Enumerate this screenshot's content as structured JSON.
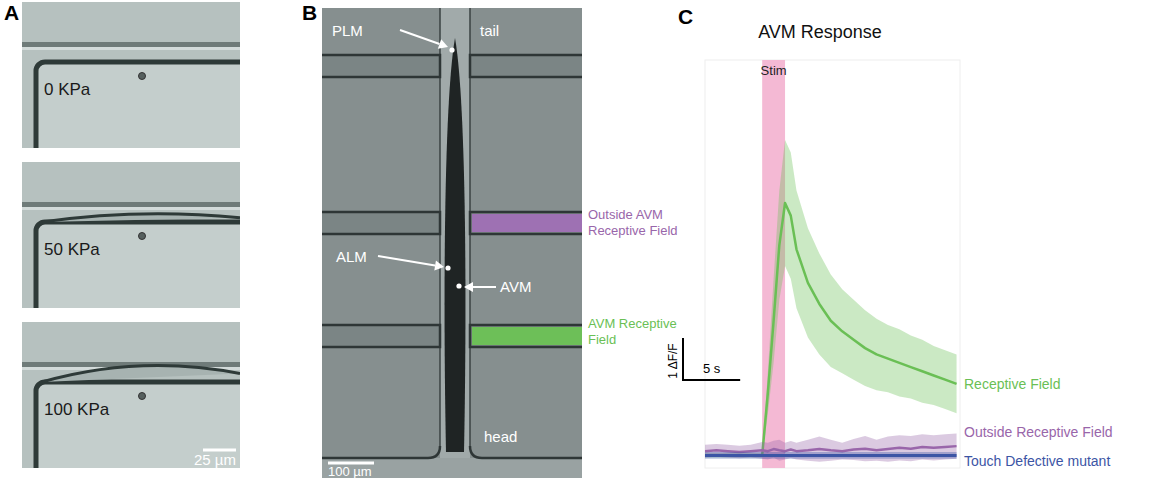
{
  "panel_letters": [
    "A",
    "B",
    "C"
  ],
  "panel_a": {
    "images": [
      {
        "label": "0 KPa"
      },
      {
        "label": "50 KPa"
      },
      {
        "label": "100 KPa"
      }
    ],
    "scale_bar": "25 µm"
  },
  "panel_b": {
    "labels": {
      "plm": "PLM",
      "tail": "tail",
      "alm": "ALM",
      "avm": "AVM",
      "head": "head"
    },
    "outside_field": "Outside AVM Receptive Field",
    "field": "AVM Receptive Field",
    "scale_bar": "100 µm"
  },
  "chart_data": {
    "type": "line",
    "title": "AVM Response",
    "x": [
      0,
      1,
      2,
      3,
      4,
      5,
      5.5,
      6,
      6.5,
      7,
      7.5,
      8,
      9,
      10,
      11,
      12,
      13,
      14,
      15,
      16,
      17,
      18,
      19,
      20,
      21,
      22
    ],
    "xlim": [
      0,
      22.3
    ],
    "ylim": [
      -0.3,
      9.4
    ],
    "tick_labels": false,
    "grid": false,
    "annotations": [
      {
        "label": "Stim",
        "x": [
          5,
          7
        ]
      }
    ],
    "scale_bars": {
      "x": {
        "value": 5,
        "label": "5 s"
      },
      "y": {
        "value": 1,
        "label": "1 ΔF/F"
      }
    },
    "series": [
      {
        "name": "Receptive Field",
        "color": "#6abf55",
        "values": [
          0,
          0,
          0,
          0,
          0,
          0,
          1.5,
          3.2,
          5.0,
          6.0,
          5.7,
          4.9,
          4.1,
          3.6,
          3.2,
          2.95,
          2.75,
          2.55,
          2.4,
          2.3,
          2.2,
          2.1,
          2.0,
          1.9,
          1.8,
          1.7
        ],
        "error": [
          0.05,
          0.05,
          0.05,
          0.05,
          0.05,
          0.05,
          0.5,
          1.0,
          1.3,
          1.5,
          1.5,
          1.4,
          1.3,
          1.2,
          1.1,
          1.0,
          0.95,
          0.9,
          0.85,
          0.8,
          0.8,
          0.75,
          0.75,
          0.7,
          0.7,
          0.7
        ]
      },
      {
        "name": "Outside Receptive Field",
        "color": "#9966aa",
        "values": [
          0.1,
          0.12,
          0.1,
          0.08,
          0.1,
          0.12,
          0.1,
          0.15,
          0.12,
          0.1,
          0.14,
          0.1,
          0.12,
          0.15,
          0.12,
          0.1,
          0.14,
          0.16,
          0.12,
          0.15,
          0.18,
          0.16,
          0.2,
          0.18,
          0.2,
          0.22
        ],
        "error": [
          0.15,
          0.15,
          0.15,
          0.15,
          0.15,
          0.2,
          0.2,
          0.2,
          0.25,
          0.2,
          0.2,
          0.2,
          0.25,
          0.3,
          0.25,
          0.2,
          0.25,
          0.3,
          0.25,
          0.3,
          0.3,
          0.3,
          0.3,
          0.3,
          0.3,
          0.3
        ]
      },
      {
        "name": "Touch Defective mutant",
        "color": "#3c55a5",
        "values": [
          0,
          0,
          0,
          0,
          0,
          0,
          0,
          0,
          0,
          0,
          0,
          0,
          0,
          0,
          0,
          0,
          0,
          0,
          0,
          0,
          0,
          0,
          0,
          0,
          0,
          0
        ],
        "error": [
          0.08,
          0.08,
          0.08,
          0.08,
          0.08,
          0.08,
          0.08,
          0.08,
          0.08,
          0.08,
          0.08,
          0.08,
          0.08,
          0.08,
          0.08,
          0.08,
          0.08,
          0.08,
          0.08,
          0.08,
          0.08,
          0.08,
          0.08,
          0.08,
          0.08,
          0.08
        ]
      }
    ]
  }
}
